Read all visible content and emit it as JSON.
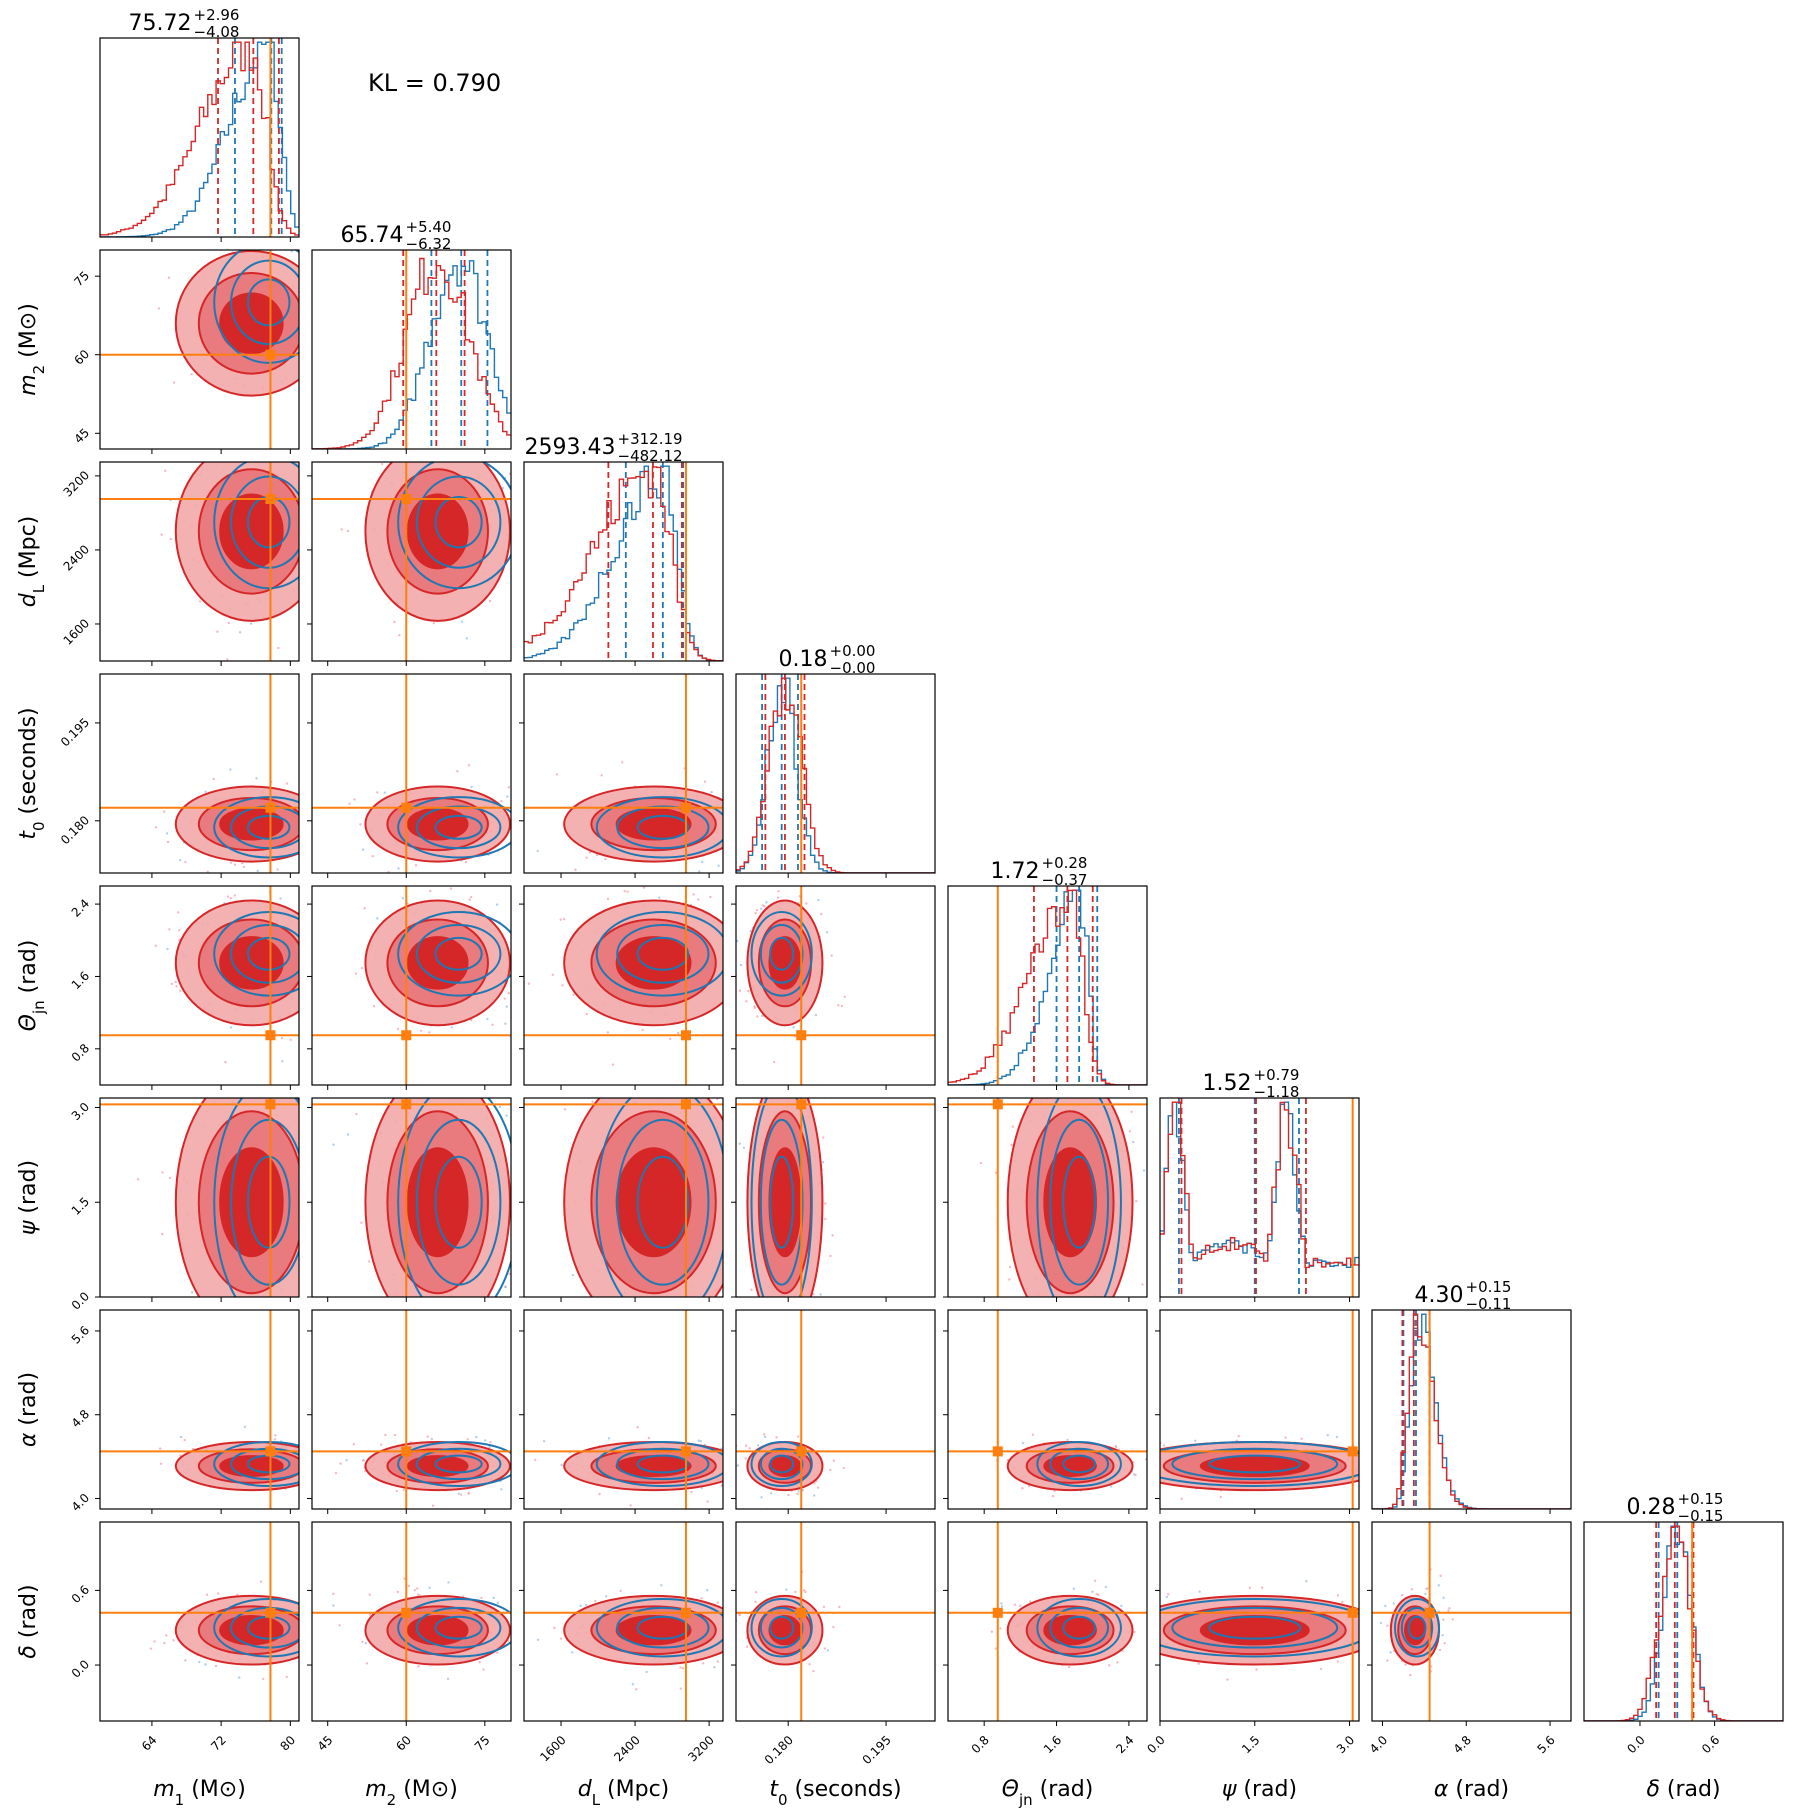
{
  "figure": {
    "kl_text": "KL = 0.790"
  },
  "colors": {
    "red": "#d62728",
    "blue": "#1f77b4",
    "orange": "#ff7f0e",
    "red_light": "#f2a8a9",
    "red_mid": "#e8777a"
  },
  "chart_data": {
    "type": "corner",
    "kl": 0.79,
    "parameters": [
      {
        "key": "m1",
        "label_main": "m",
        "label_sub": "1",
        "label_unit": " (M⊙)",
        "range": [
          58,
          81
        ],
        "ticks": [
          64,
          72,
          80
        ],
        "tick_labels": [
          "64",
          "72",
          "80"
        ],
        "truth": 77.7,
        "title_value": "75.72",
        "title_plus": "+2.96",
        "title_minus": "−4.08",
        "red_quantiles": [
          71.64,
          75.72,
          78.68
        ],
        "blue_quantiles": [
          73.6,
          77.8,
          79.0
        ],
        "red_center": 75.5,
        "red_spread": 3.8,
        "blue_center": 77.5,
        "blue_spread": 3.0,
        "skew": "left"
      },
      {
        "key": "m2",
        "label_main": "m",
        "label_sub": "2",
        "label_unit": " (M⊙)",
        "range": [
          42,
          80
        ],
        "ticks": [
          45,
          60,
          75
        ],
        "tick_labels": [
          "45",
          "60",
          "75"
        ],
        "truth": 60.0,
        "title_value": "65.74",
        "title_plus": "+5.40",
        "title_minus": "−6.32",
        "red_quantiles": [
          59.42,
          65.74,
          71.14
        ],
        "blue_quantiles": [
          64.8,
          70.5,
          75.5
        ],
        "red_center": 66.0,
        "red_spread": 6.0,
        "blue_center": 70.0,
        "blue_spread": 5.5,
        "skew": "none"
      },
      {
        "key": "dL",
        "label_main": "d",
        "label_sub": "L",
        "label_unit": " (Mpc)",
        "range": [
          1200,
          3350
        ],
        "ticks": [
          1600,
          2400,
          3200
        ],
        "tick_labels": [
          "1600",
          "2400",
          "3200"
        ],
        "truth": 2950,
        "title_value": "2593.43",
        "title_plus": "+312.19",
        "title_minus": "−482.12",
        "red_quantiles": [
          2111.3,
          2593.43,
          2905.6
        ],
        "blue_quantiles": [
          2300,
          2700,
          2920
        ],
        "red_center": 2600,
        "red_spread": 420,
        "blue_center": 2700,
        "blue_spread": 340,
        "skew": "left"
      },
      {
        "key": "t0",
        "label_main": "t",
        "label_sub": "0",
        "label_unit": " (seconds)",
        "range": [
          0.172,
          0.2025
        ],
        "ticks": [
          0.18,
          0.195
        ],
        "tick_labels": [
          "0.180",
          "0.195"
        ],
        "truth": 0.182,
        "title_value": "0.18",
        "title_plus": "+0.00",
        "title_minus": "−0.00",
        "red_quantiles": [
          0.1765,
          0.1795,
          0.1825
        ],
        "blue_quantiles": [
          0.176,
          0.179,
          0.1815
        ],
        "red_center": 0.1795,
        "red_spread": 0.0025,
        "blue_center": 0.179,
        "blue_spread": 0.0022,
        "skew": "none"
      },
      {
        "key": "theta",
        "label_main": "Θ",
        "label_sub": "jn",
        "label_unit": " (rad)",
        "range": [
          0.4,
          2.6
        ],
        "ticks": [
          0.8,
          1.6,
          2.4
        ],
        "tick_labels": [
          "0.8",
          "1.6",
          "2.4"
        ],
        "truth": 0.95,
        "title_value": "1.72",
        "title_plus": "+0.28",
        "title_minus": "−0.37",
        "red_quantiles": [
          1.35,
          1.72,
          2.0
        ],
        "blue_quantiles": [
          1.6,
          1.85,
          2.05
        ],
        "red_center": 1.75,
        "red_spread": 0.3,
        "blue_center": 1.85,
        "blue_spread": 0.22,
        "skew": "left"
      },
      {
        "key": "psi",
        "label_main": "ψ",
        "label_sub": "",
        "label_unit": " (rad)",
        "range": [
          0.0,
          3.15
        ],
        "ticks": [
          0.0,
          1.5,
          3.0
        ],
        "tick_labels": [
          "0.0",
          "1.5",
          "3.0"
        ],
        "truth": 3.05,
        "title_value": "1.52",
        "title_plus": "+0.79",
        "title_minus": "−1.18",
        "red_quantiles": [
          0.34,
          1.52,
          2.31
        ],
        "blue_quantiles": [
          0.3,
          1.5,
          2.2
        ],
        "red_center": 1.5,
        "red_spread": 0.9,
        "blue_center": 1.5,
        "blue_spread": 0.9,
        "skew": "bimodal"
      },
      {
        "key": "alpha",
        "label_main": "α",
        "label_sub": "",
        "label_unit": " (rad)",
        "range": [
          3.9,
          5.8
        ],
        "ticks": [
          4.0,
          4.8,
          5.6
        ],
        "tick_labels": [
          "4.0",
          "4.8",
          "5.6"
        ],
        "truth": 4.45,
        "title_value": "4.30",
        "title_plus": "+0.15",
        "title_minus": "−0.11",
        "red_quantiles": [
          4.19,
          4.3,
          4.45
        ],
        "blue_quantiles": [
          4.2,
          4.32,
          4.45
        ],
        "red_center": 4.31,
        "red_spread": 0.1,
        "blue_center": 4.33,
        "blue_spread": 0.1,
        "skew": "right"
      },
      {
        "key": "delta",
        "label_main": "δ",
        "label_sub": "",
        "label_unit": " (rad)",
        "range": [
          -0.45,
          1.15
        ],
        "ticks": [
          0.0,
          0.6
        ],
        "tick_labels": [
          "0.0",
          "0.6"
        ],
        "truth": 0.42,
        "title_value": "0.28",
        "title_plus": "+0.15",
        "title_minus": "−0.15",
        "red_quantiles": [
          0.13,
          0.28,
          0.43
        ],
        "blue_quantiles": [
          0.15,
          0.3,
          0.42
        ],
        "red_center": 0.28,
        "red_spread": 0.12,
        "blue_center": 0.3,
        "blue_spread": 0.11,
        "skew": "none"
      }
    ]
  }
}
